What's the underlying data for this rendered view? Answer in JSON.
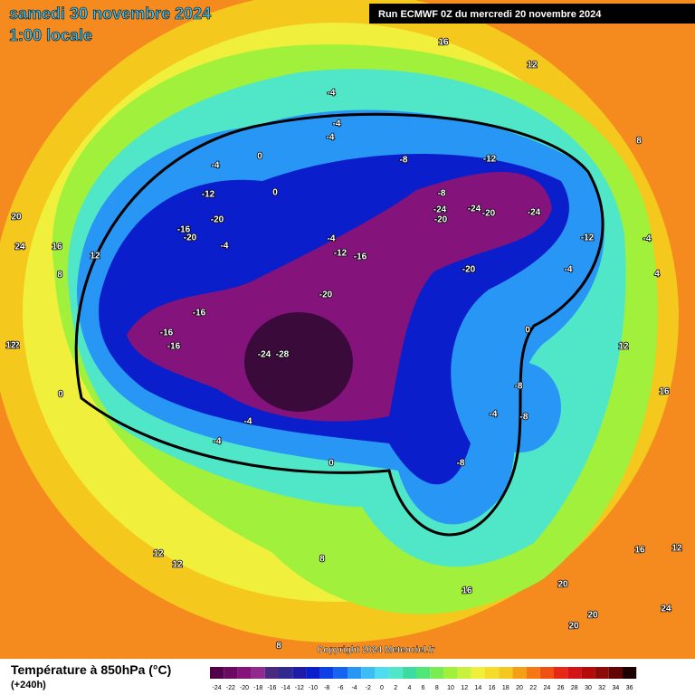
{
  "header": {
    "date": "samedi 30 novembre 2024",
    "time": "1:00 locale",
    "run": "Run ECMWF 0Z du mercredi 20 novembre 2024"
  },
  "copyright": "Copyright 2024 Meteociel.fr",
  "footer": {
    "title": "Température à 850hPa (°C)",
    "subtitle": "(+240h)"
  },
  "legend": {
    "levels": [
      -24,
      -22,
      -20,
      -18,
      -16,
      -14,
      -12,
      -10,
      -8,
      -6,
      -4,
      -2,
      0,
      2,
      4,
      6,
      8,
      10,
      12,
      14,
      16,
      18,
      20,
      22,
      24,
      26,
      28,
      30,
      32,
      34,
      36
    ],
    "colors": [
      "#52004a",
      "#6b0a63",
      "#84147c",
      "#8f2a8e",
      "#4a2a80",
      "#2e2a90",
      "#1c1ca8",
      "#0a1ecc",
      "#0a40e6",
      "#1464f0",
      "#2896f5",
      "#3cbef5",
      "#50dcf0",
      "#50e6c8",
      "#3cdca0",
      "#50e678",
      "#78ec50",
      "#a0f03c",
      "#c8f03c",
      "#f0f03c",
      "#f5dc28",
      "#f5c81e",
      "#f5a014",
      "#f57814",
      "#f05014",
      "#e62814",
      "#d21414",
      "#b40a0a",
      "#8c0a0a",
      "#640505",
      "#1e0000"
    ]
  },
  "map_labels": [
    16,
    12,
    8,
    20,
    24,
    16,
    12,
    8,
    12,
    0,
    -4,
    -4,
    -4,
    0,
    0,
    -4,
    -12,
    -20,
    -16,
    -20,
    -4,
    -4,
    -8,
    -12,
    -16,
    -20,
    -24,
    -24,
    -28,
    -16,
    -16,
    -16,
    -4,
    -4,
    0,
    -8,
    -8,
    -24,
    -20,
    -12,
    -20,
    -24,
    -20,
    -12,
    -4,
    -4,
    4,
    12,
    12,
    0,
    -8,
    -8,
    -4,
    16,
    16,
    12,
    12,
    8,
    8,
    16,
    20,
    20,
    20,
    24,
    12
  ]
}
